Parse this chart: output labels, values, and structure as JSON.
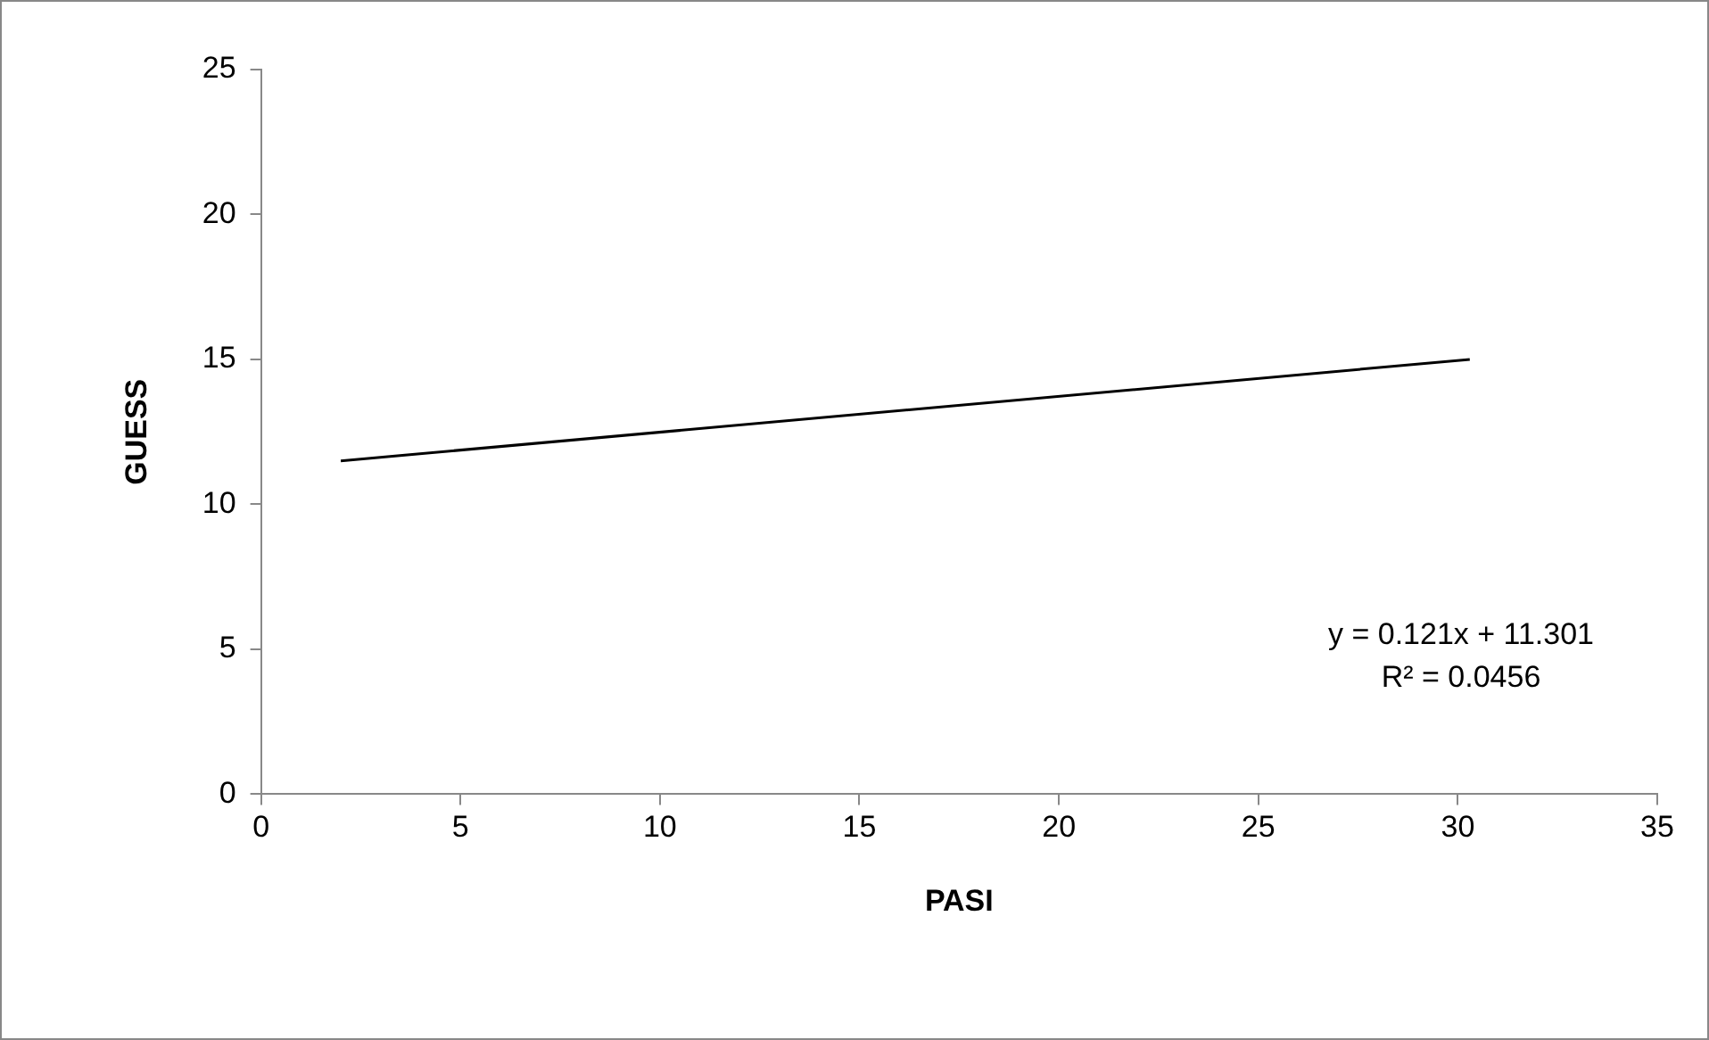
{
  "chart_data": {
    "type": "line",
    "xlabel": "PASI",
    "ylabel": "GUESS",
    "series": [
      {
        "color": "#000000",
        "x": [
          2,
          30.3
        ],
        "values": [
          11.5,
          15.0
        ]
      }
    ],
    "xlim": [
      0,
      35
    ],
    "xticks": [
      0,
      5,
      10,
      15,
      20,
      25,
      30,
      35
    ],
    "ylim": [
      0,
      25
    ],
    "yticks": [
      0,
      5,
      10,
      15,
      20,
      25
    ],
    "grid": false,
    "legend": false,
    "marker": "none",
    "annotations": [
      "y = 0.121x + 11.301",
      "R² = 0.0456"
    ]
  }
}
